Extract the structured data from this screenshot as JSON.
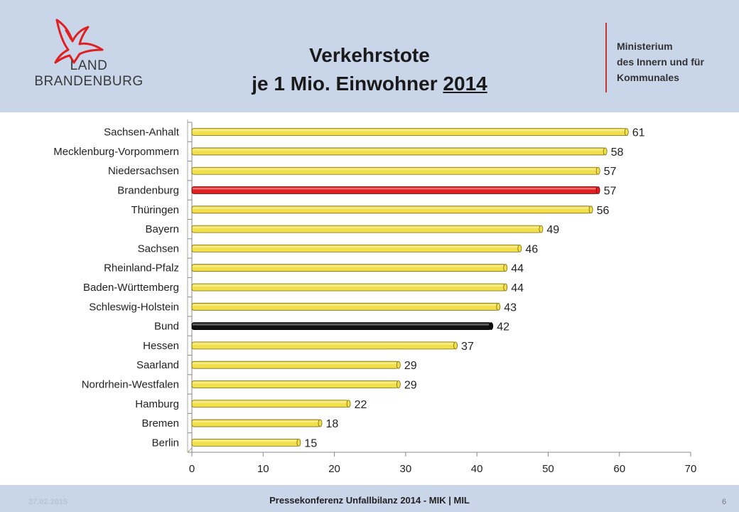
{
  "slide": {
    "title_line1": "Verkehrstote",
    "title_line2": "je 1 Mio. Einwohner ",
    "title_year": "2014",
    "ministry_line1": "Ministerium",
    "ministry_line2": "des Innern und für",
    "ministry_line3": "Kommunales",
    "logo_line1": "LAND",
    "logo_line2": "BRANDENBURG",
    "footer_date": "27.02.2015",
    "footer_text": "Pressekonferenz Unfallbilanz 2014 - MIK | MIL",
    "page_number": "6"
  },
  "colors": {
    "header_bg": "#c9d5e9",
    "bar_default": "#f2e04a",
    "bar_brandenburg": "#e02020",
    "bar_bund": "#111111",
    "accent": "#c0392b"
  },
  "chart_data": {
    "type": "bar",
    "orientation": "horizontal",
    "title": "Verkehrstote je 1 Mio. Einwohner 2014",
    "categories": [
      "Sachsen-Anhalt",
      "Mecklenburg-Vorpommern",
      "Niedersachsen",
      "Brandenburg",
      "Thüringen",
      "Bayern",
      "Sachsen",
      "Rheinland-Pfalz",
      "Baden-Württemberg",
      "Schleswig-Holstein",
      "Bund",
      "Hessen",
      "Saarland",
      "Nordrhein-Westfalen",
      "Hamburg",
      "Bremen",
      "Berlin"
    ],
    "values": [
      61,
      58,
      57,
      57,
      56,
      49,
      46,
      44,
      44,
      43,
      42,
      37,
      29,
      29,
      22,
      18,
      15
    ],
    "highlight": {
      "Brandenburg": "red",
      "Bund": "black"
    },
    "xlim": [
      0,
      70
    ],
    "xticks": [
      0,
      10,
      20,
      30,
      40,
      50,
      60,
      70
    ],
    "data_labels": true,
    "grid": false,
    "legend": "none",
    "xlabel": "",
    "ylabel": ""
  }
}
